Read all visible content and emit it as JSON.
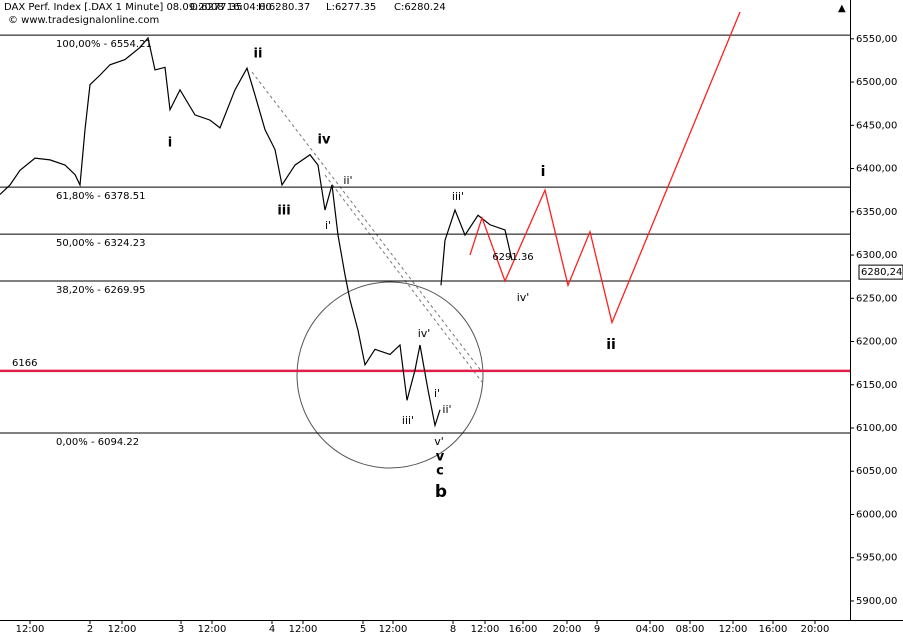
{
  "chart_data": {
    "type": "line",
    "title": "DAX Perf. Index [.DAX  1 Minute] 08.09.2008 16:04:00 :",
    "ohlc": [
      {
        "label": "O:6277.35",
        "color": "#00a000"
      },
      {
        "label": "H:6280.37",
        "color": "#000000"
      },
      {
        "label": "L:6277.35",
        "color": "#000000"
      },
      {
        "label": "C:6280.24",
        "color": "#00a000"
      }
    ],
    "watermark": "© www.tradesignalonline.com",
    "xlim": [
      0,
      850
    ],
    "xticks": [
      {
        "value": 30,
        "label": "12:00"
      },
      {
        "value": 90,
        "label": "2"
      },
      {
        "value": 122,
        "label": "12:00"
      },
      {
        "value": 181,
        "label": "3"
      },
      {
        "value": 212,
        "label": "12:00"
      },
      {
        "value": 272,
        "label": "4"
      },
      {
        "value": 303,
        "label": "12:00"
      },
      {
        "value": 363,
        "label": "5"
      },
      {
        "value": 393,
        "label": "12:00"
      },
      {
        "value": 453,
        "label": "8"
      },
      {
        "value": 485,
        "label": "12:00"
      },
      {
        "value": 523,
        "label": "16:00"
      },
      {
        "value": 567,
        "label": "20:00"
      },
      {
        "value": 597,
        "label": "9"
      },
      {
        "value": 650,
        "label": "04:00"
      },
      {
        "value": 690,
        "label": "08:00"
      },
      {
        "value": 733,
        "label": "12:00"
      },
      {
        "value": 773,
        "label": "16:00"
      },
      {
        "value": 815,
        "label": "20:00"
      }
    ],
    "ylim": [
      5878,
      6581
    ],
    "yticks": [
      {
        "value": 5900,
        "label": "5900,00"
      },
      {
        "value": 5950,
        "label": "5950,00"
      },
      {
        "value": 6000,
        "label": "6000,00"
      },
      {
        "value": 6050,
        "label": "6050,00"
      },
      {
        "value": 6100,
        "label": "6100,00"
      },
      {
        "value": 6150,
        "label": "6150,00"
      },
      {
        "value": 6200,
        "label": "6200,00"
      },
      {
        "value": 6250,
        "label": "6250,00"
      },
      {
        "value": 6300,
        "label": "6300,00"
      },
      {
        "value": 6350,
        "label": "6350,00"
      },
      {
        "value": 6400,
        "label": "6400,00"
      },
      {
        "value": 6450,
        "label": "6450,00"
      },
      {
        "value": 6500,
        "label": "6500,00"
      },
      {
        "value": 6550,
        "label": "6550,00"
      }
    ],
    "series": [
      {
        "name": "DAX",
        "color": "#000000",
        "x": [
          0,
          10,
          20,
          35,
          50,
          65,
          75,
          80,
          85,
          90,
          100,
          110,
          125,
          140,
          148,
          155,
          165,
          170,
          180,
          195,
          210,
          220,
          235,
          247,
          255,
          265,
          275,
          282,
          295,
          310,
          318,
          325,
          332,
          338,
          345,
          350,
          358,
          365,
          375,
          390,
          400,
          407,
          415,
          420,
          428,
          435,
          440,
          440.5,
          441,
          445,
          455,
          465,
          478,
          490,
          505,
          512
        ],
        "values": [
          6370,
          6381,
          6398,
          6412,
          6410,
          6404,
          6393,
          6381,
          6445,
          6497,
          6508,
          6520,
          6526,
          6540,
          6551,
          6514,
          6517,
          6468,
          6491,
          6462,
          6456,
          6447,
          6491,
          6516,
          6485,
          6445,
          6422,
          6381,
          6404,
          6416,
          6404,
          6352,
          6381,
          6323,
          6277,
          6248,
          6213,
          6173,
          6191,
          6185,
          6196,
          6132,
          6167,
          6196,
          6144,
          6103,
          6121,
          null,
          6265,
          6317,
          6352,
          6323,
          6346,
          6335,
          6329,
          6294
        ]
      },
      {
        "name": "Projection",
        "color": "#ff2020",
        "x": [
          470,
          482,
          505,
          545,
          568,
          590,
          612,
          745
        ],
        "values": [
          6300,
          6343,
          6270,
          6375,
          6265,
          6327,
          6222,
          6595
        ]
      }
    ],
    "levels": [
      {
        "value": 6554.21,
        "label": "100,00% - 6554.21"
      },
      {
        "value": 6378.51,
        "label": "61,80% - 6378.51"
      },
      {
        "value": 6324.23,
        "label": "50,00% - 6324.23"
      },
      {
        "value": 6269.95,
        "label": "38,20% - 6269.95"
      },
      {
        "value": 6094.22,
        "label": "0,00% - 6094.22"
      }
    ],
    "support": {
      "value": 6166,
      "color": "#e0204a"
    },
    "last": {
      "value": 6280.24,
      "label": "6280,24"
    },
    "annotations": [
      {
        "text": "ii",
        "color": "#f0900a"
      },
      {
        "text": "i",
        "color": "#f0900a"
      },
      {
        "text": "iii",
        "color": "#f0900a"
      },
      {
        "text": "iv",
        "color": "#f0900a"
      },
      {
        "text": "ii'",
        "color": "#d01030"
      },
      {
        "text": "i'",
        "color": "#d01030"
      },
      {
        "text": "iv'",
        "color": "#d01030"
      },
      {
        "text": "iii'",
        "color": "#d01030"
      },
      {
        "text": "i'",
        "color": "#d01030"
      },
      {
        "text": "ii'",
        "color": "#d01030"
      },
      {
        "text": "v'",
        "color": "#d01030"
      },
      {
        "text": "v",
        "color": "#f0900a"
      },
      {
        "text": "c",
        "color": "#e02020"
      },
      {
        "text": "b",
        "color": "#404040"
      },
      {
        "text": "iii'",
        "color": "#d01030"
      },
      {
        "text": "iv'",
        "color": "#d01030"
      },
      {
        "text": "6291.36",
        "color": "#e02020"
      },
      {
        "text": "i",
        "color": "#f0900a"
      },
      {
        "text": "ii",
        "color": "#f0900a"
      }
    ]
  }
}
